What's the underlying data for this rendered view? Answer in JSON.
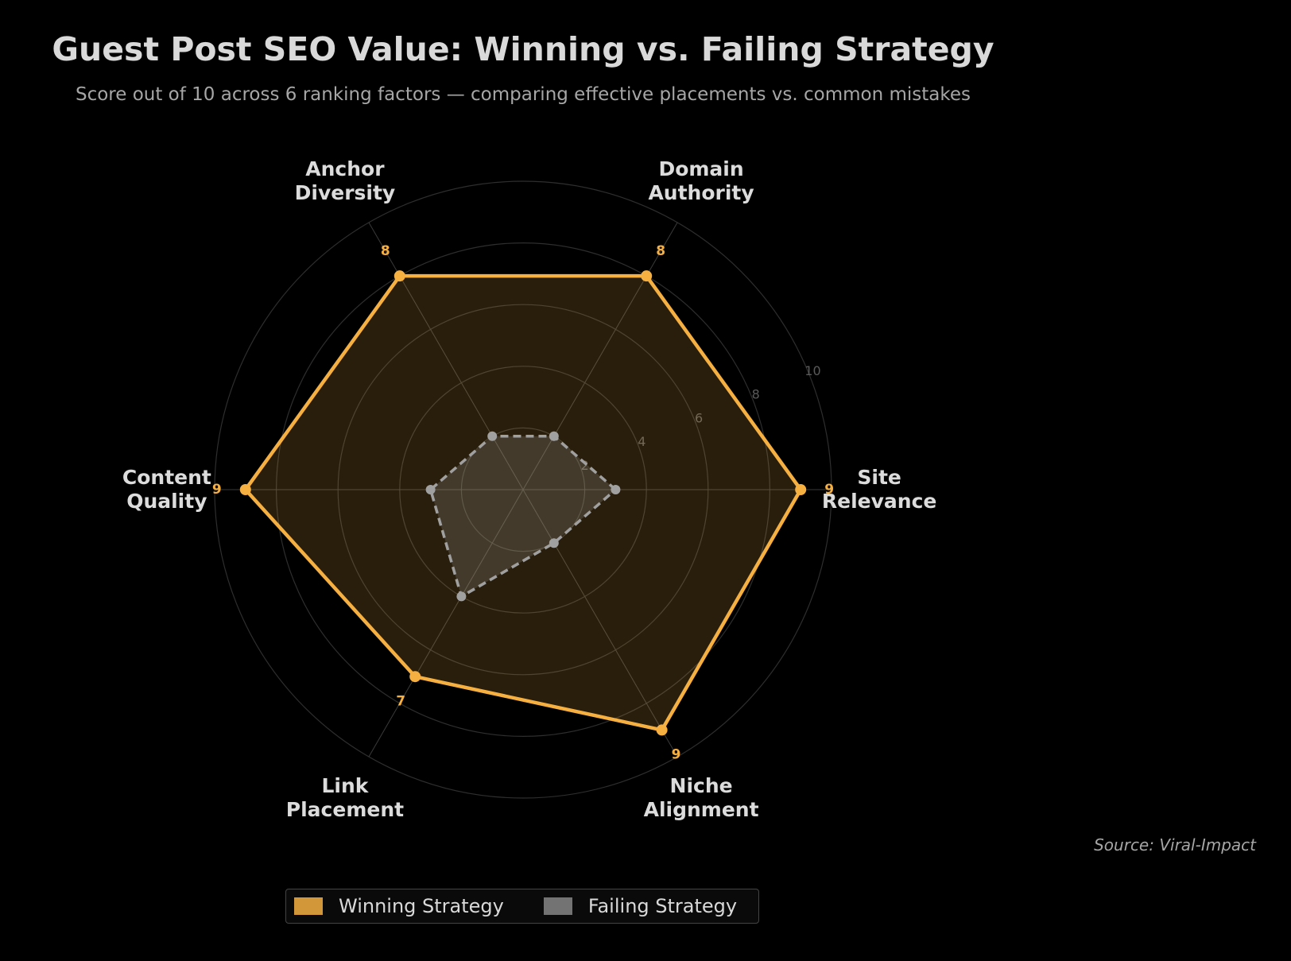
{
  "chart_data": {
    "type": "radar",
    "title": "Guest Post SEO Value: Winning vs. Failing Strategy",
    "subtitle": "Score out of 10 across 6 ranking factors — comparing effective placements vs. common mistakes",
    "source": "Source: Viral-Impact",
    "categories": [
      "Site Relevance",
      "Domain Authority",
      "Anchor Diversity",
      "Content Quality",
      "Link Placement",
      "Niche Alignment"
    ],
    "series": [
      {
        "name": "Winning Strategy",
        "color": "#f5b041",
        "values": [
          9,
          8,
          8,
          9,
          7,
          9
        ]
      },
      {
        "name": "Failing Strategy",
        "color": "#a0a0a0",
        "values": [
          3,
          2,
          2,
          3,
          4,
          2
        ]
      }
    ],
    "rlim": [
      0,
      10
    ],
    "rticks": [
      2,
      4,
      6,
      8,
      10
    ],
    "grid": true,
    "legend": "bottom"
  }
}
